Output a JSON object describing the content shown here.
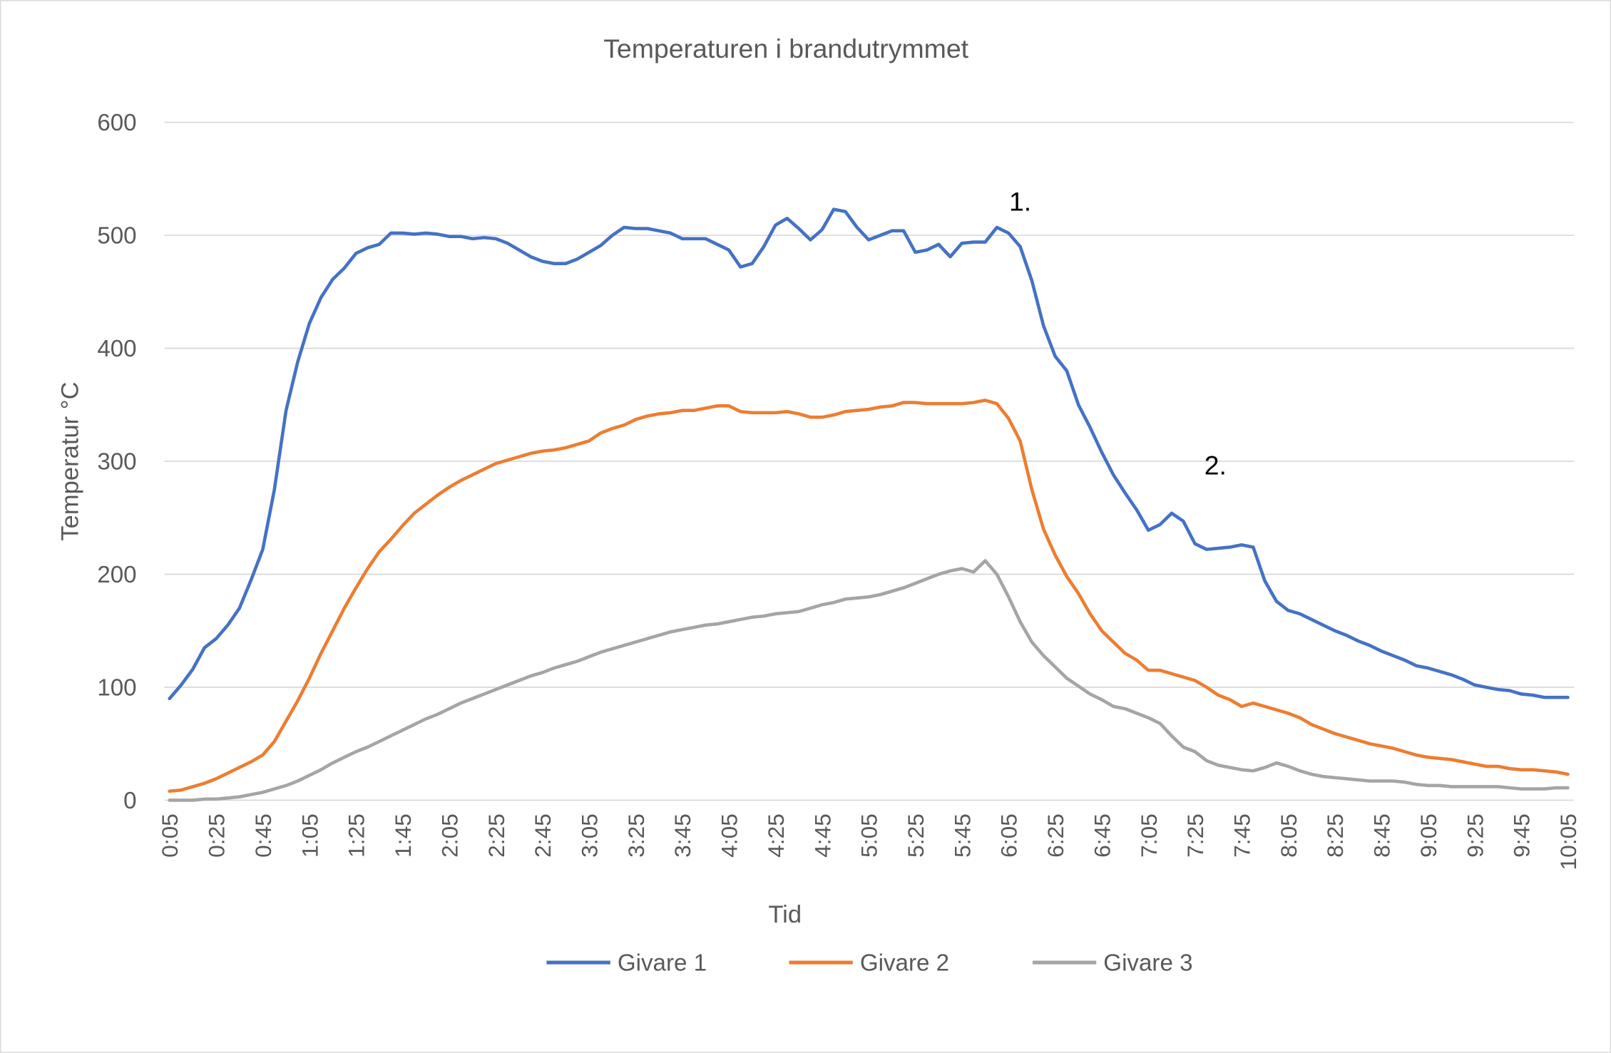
{
  "chart_data": {
    "type": "line",
    "title": "Temperaturen i brandutrymmet",
    "x_label": "Tid",
    "y_label": "Temperatur °C",
    "annotations": [
      "1.",
      "2."
    ],
    "categories": [
      "0:05",
      null,
      null,
      null,
      "0:25",
      null,
      null,
      null,
      "0:45",
      null,
      null,
      null,
      "1:05",
      null,
      null,
      null,
      "1:25",
      null,
      null,
      null,
      "1:45",
      null,
      null,
      null,
      "2:05",
      null,
      null,
      null,
      "2:25",
      null,
      null,
      null,
      "2:45",
      null,
      null,
      null,
      "3:05",
      null,
      null,
      null,
      "3:25",
      null,
      null,
      null,
      "3:45",
      null,
      null,
      null,
      "4:05",
      null,
      null,
      null,
      "4:25",
      null,
      null,
      null,
      "4:45",
      null,
      null,
      null,
      "5:05",
      null,
      null,
      null,
      "5:25",
      null,
      null,
      null,
      "5:45",
      null,
      null,
      null,
      "6:05",
      null,
      null,
      null,
      "6:25",
      null,
      null,
      null,
      "6:45",
      null,
      null,
      null,
      "7:05",
      null,
      null,
      null,
      "7:25",
      null,
      null,
      null,
      "7:45",
      null,
      null,
      null,
      "8:05",
      null,
      null,
      null,
      "8:25",
      null,
      null,
      null,
      "8:45",
      null,
      null,
      null,
      "9:05",
      null,
      null,
      null,
      "9:25",
      null,
      null,
      null,
      "9:45",
      null,
      null,
      null,
      "10:05"
    ],
    "series": [
      {
        "name": "Givare 1",
        "color": "#4472c4",
        "values": [
          90,
          102,
          116,
          135,
          143,
          155,
          170,
          195,
          222,
          275,
          345,
          388,
          422,
          445,
          461,
          471,
          484,
          489,
          492,
          502,
          502,
          501,
          502,
          501,
          499,
          499,
          497,
          498,
          497,
          493,
          487,
          481,
          477,
          475,
          475,
          479,
          485,
          491,
          500,
          507,
          506,
          506,
          504,
          502,
          497,
          497,
          497,
          492,
          487,
          472,
          475,
          490,
          509,
          515,
          506,
          496,
          505,
          523,
          521,
          507,
          496,
          500,
          504,
          504,
          485,
          487,
          492,
          481,
          493,
          494,
          494,
          507,
          502,
          490,
          460,
          420,
          393,
          380,
          350,
          330,
          308,
          288,
          272,
          257,
          239,
          244,
          254,
          247,
          227,
          222,
          223,
          224,
          226,
          224,
          194,
          176,
          168,
          165,
          160,
          155,
          150,
          146,
          141,
          137,
          132,
          128,
          124,
          119,
          117,
          114,
          111,
          107,
          102,
          100,
          98,
          97,
          94,
          93,
          91,
          91,
          91
        ]
      },
      {
        "name": "Givare 2",
        "color": "#ed7d31",
        "values": [
          8,
          9,
          12,
          15,
          19,
          24,
          29,
          34,
          40,
          52,
          70,
          88,
          108,
          130,
          150,
          170,
          188,
          205,
          220,
          231,
          243,
          254,
          262,
          270,
          277,
          283,
          288,
          293,
          298,
          301,
          304,
          307,
          309,
          310,
          312,
          315,
          318,
          325,
          329,
          332,
          337,
          340,
          342,
          343,
          345,
          345,
          347,
          349,
          349,
          344,
          343,
          343,
          343,
          344,
          342,
          339,
          339,
          341,
          344,
          345,
          346,
          348,
          349,
          352,
          352,
          351,
          351,
          351,
          351,
          352,
          354,
          351,
          338,
          318,
          275,
          240,
          217,
          198,
          183,
          165,
          150,
          140,
          130,
          124,
          115,
          115,
          112,
          109,
          106,
          100,
          93,
          89,
          83,
          86,
          83,
          80,
          77,
          73,
          67,
          63,
          59,
          56,
          53,
          50,
          48,
          46,
          43,
          40,
          38,
          37,
          36,
          34,
          32,
          30,
          30,
          28,
          27,
          27,
          26,
          25,
          23
        ]
      },
      {
        "name": "Givare 3",
        "color": "#a5a5a5",
        "values": [
          0,
          0,
          0,
          1,
          1,
          2,
          3,
          5,
          7,
          10,
          13,
          17,
          22,
          27,
          33,
          38,
          43,
          47,
          52,
          57,
          62,
          67,
          72,
          76,
          81,
          86,
          90,
          94,
          98,
          102,
          106,
          110,
          113,
          117,
          120,
          123,
          127,
          131,
          134,
          137,
          140,
          143,
          146,
          149,
          151,
          153,
          155,
          156,
          158,
          160,
          162,
          163,
          165,
          166,
          167,
          170,
          173,
          175,
          178,
          179,
          180,
          182,
          185,
          188,
          192,
          196,
          200,
          203,
          205,
          202,
          212,
          200,
          180,
          158,
          140,
          128,
          118,
          108,
          101,
          94,
          89,
          83,
          81,
          77,
          73,
          68,
          57,
          47,
          43,
          35,
          31,
          29,
          27,
          26,
          29,
          33,
          30,
          26,
          23,
          21,
          20,
          19,
          18,
          17,
          17,
          17,
          16,
          14,
          13,
          13,
          12,
          12,
          12,
          12,
          12,
          11,
          10,
          10,
          10,
          11,
          11
        ]
      }
    ],
    "ylim": [
      0,
      600
    ],
    "yticks": [
      0,
      100,
      200,
      300,
      400,
      500,
      600
    ],
    "grid": true,
    "legend": "bottom"
  }
}
